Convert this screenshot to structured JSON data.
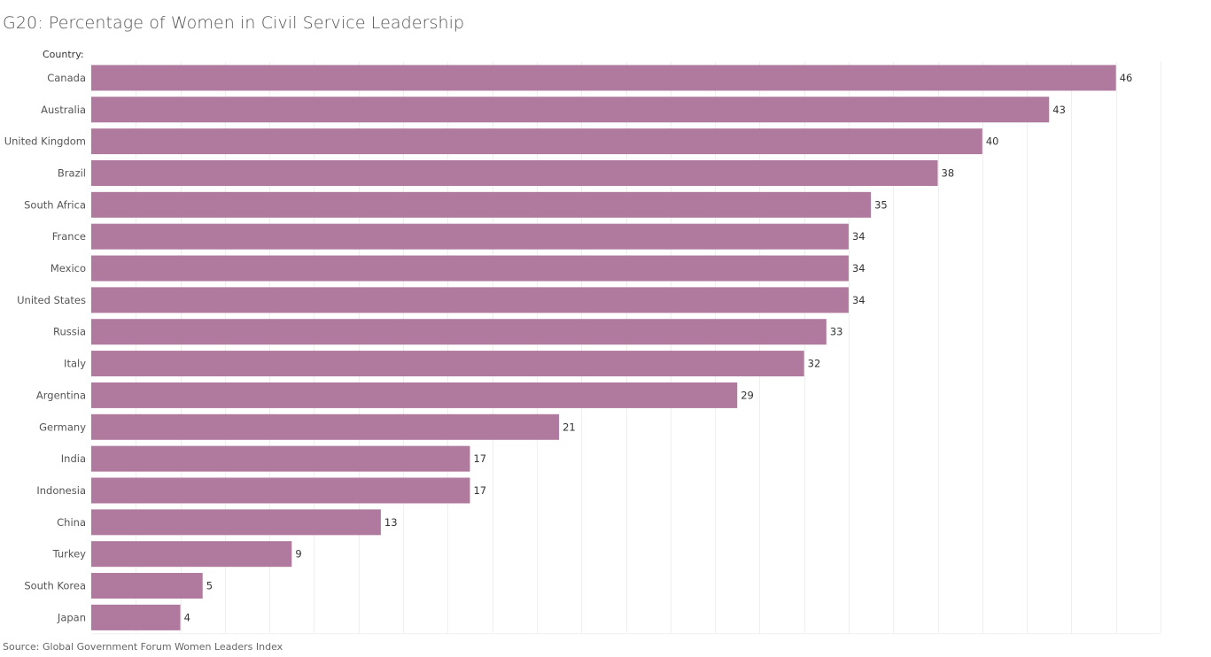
{
  "chart_data": {
    "type": "bar",
    "orientation": "horizontal",
    "title": "G20: Percentage of Women in Civil Service Leadership",
    "ylabel": "Country:",
    "xlabel": "",
    "xlim": [
      0,
      48
    ],
    "grid": "vertical, every 2 units",
    "bar_color": "#b07a9e",
    "categories": [
      "Canada",
      "Australia",
      "United Kingdom",
      "Brazil",
      "South Africa",
      "France",
      "Mexico",
      "United States",
      "Russia",
      "Italy",
      "Argentina",
      "Germany",
      "India",
      "Indonesia",
      "China",
      "Turkey",
      "South Korea",
      "Japan"
    ],
    "values": [
      46,
      43,
      40,
      38,
      35,
      34,
      34,
      34,
      33,
      32,
      29,
      21,
      17,
      17,
      13,
      9,
      5,
      4
    ],
    "source": "Source: Global Government Forum Women Leaders Index"
  }
}
